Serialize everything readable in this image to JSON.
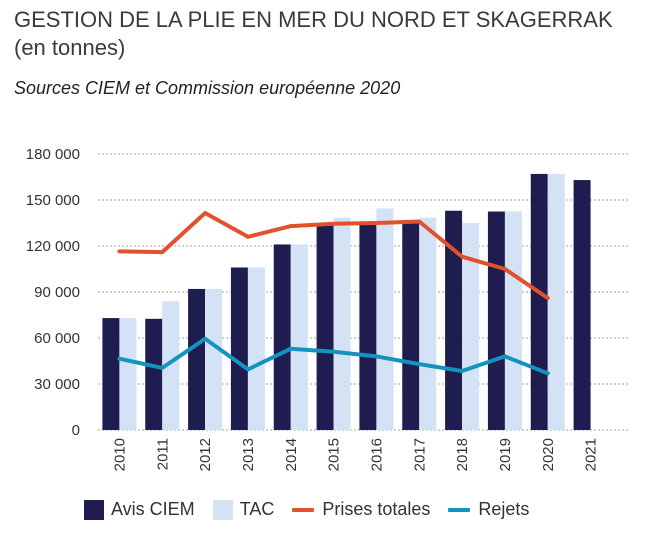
{
  "header": {
    "title": "GESTION DE LA PLIE EN MER DU NORD ET SKAGERRAK",
    "subtitle": "(en tonnes)",
    "source": "Sources CIEM et Commission européenne 2020"
  },
  "colors": {
    "avis": "#1f1d4f",
    "tac": "#d3e2f4",
    "prises": "#e2512c",
    "rejets": "#1593bf",
    "grid": "#444444"
  },
  "chart_data": {
    "type": "bar",
    "title": "GESTION DE LA PLIE EN MER DU NORD ET SKAGERRAK",
    "subtitle": "(en tonnes)",
    "categories": [
      "2010",
      "2011",
      "2012",
      "2013",
      "2014",
      "2015",
      "2016",
      "2017",
      "2018",
      "2019",
      "2020",
      "2021"
    ],
    "series": [
      {
        "name": "Avis CIEM",
        "type": "bar",
        "values": [
          73000,
          72500,
          92000,
          106000,
          121000,
          135000,
          135000,
          136000,
          143000,
          142500,
          167000,
          163000
        ]
      },
      {
        "name": "TAC",
        "type": "bar",
        "values": [
          73000,
          84000,
          92000,
          106000,
          121000,
          138500,
          144500,
          138500,
          135000,
          142500,
          167000,
          null
        ]
      },
      {
        "name": "Prises totales",
        "type": "line",
        "values": [
          116500,
          116000,
          141500,
          126000,
          133000,
          134500,
          135000,
          136000,
          113000,
          105000,
          86000,
          null
        ]
      },
      {
        "name": "Rejets",
        "type": "line",
        "values": [
          46500,
          40500,
          59500,
          39500,
          53000,
          51000,
          48000,
          43000,
          38500,
          48000,
          37000,
          null
        ]
      }
    ],
    "yticks": [
      "0",
      "30 000",
      "60 000",
      "90 000",
      "120 000",
      "150 000",
      "180 000"
    ],
    "ylim": [
      0,
      180000
    ],
    "grid": true,
    "legend_position": "bottom"
  },
  "legend": {
    "items": [
      {
        "label": "Avis CIEM"
      },
      {
        "label": "TAC"
      },
      {
        "label": "Prises totales"
      },
      {
        "label": "Rejets"
      }
    ]
  }
}
